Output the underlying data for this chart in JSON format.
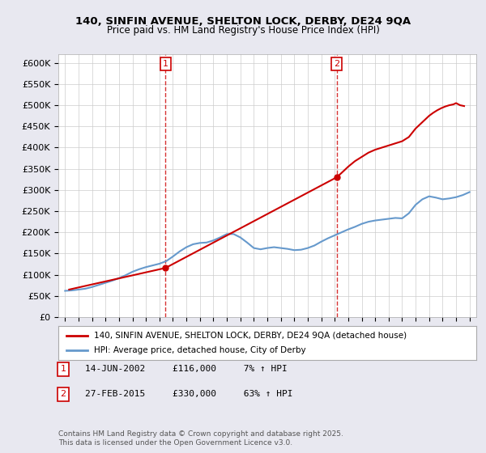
{
  "title_line1": "140, SINFIN AVENUE, SHELTON LOCK, DERBY, DE24 9QA",
  "title_line2": "Price paid vs. HM Land Registry's House Price Index (HPI)",
  "ylabel": "",
  "xlabel": "",
  "ylim": [
    0,
    620000
  ],
  "yticks": [
    0,
    50000,
    100000,
    150000,
    200000,
    250000,
    300000,
    350000,
    400000,
    450000,
    500000,
    550000,
    600000
  ],
  "ytick_labels": [
    "£0",
    "£50K",
    "£100K",
    "£150K",
    "£200K",
    "£250K",
    "£300K",
    "£350K",
    "£400K",
    "£450K",
    "£500K",
    "£550K",
    "£600K"
  ],
  "xlim_start": 1994.5,
  "xlim_end": 2025.5,
  "transaction1_date": 2002.45,
  "transaction1_price": 116000,
  "transaction1_label": "1",
  "transaction2_date": 2015.15,
  "transaction2_price": 330000,
  "transaction2_label": "2",
  "property_color": "#cc0000",
  "hpi_color": "#6699cc",
  "vline_color": "#cc0000",
  "background_color": "#e8e8f0",
  "plot_background": "#ffffff",
  "legend_label1": "140, SINFIN AVENUE, SHELTON LOCK, DERBY, DE24 9QA (detached house)",
  "legend_label2": "HPI: Average price, detached house, City of Derby",
  "annotation1": "14-JUN-2002     £116,000     7% ↑ HPI",
  "annotation2": "27-FEB-2015     £330,000     63% ↑ HPI",
  "footnote": "Contains HM Land Registry data © Crown copyright and database right 2025.\nThis data is licensed under the Open Government Licence v3.0.",
  "hpi_x": [
    1995,
    1995.5,
    1996,
    1996.5,
    1997,
    1997.5,
    1998,
    1998.5,
    1999,
    1999.5,
    2000,
    2000.5,
    2001,
    2001.5,
    2002,
    2002.5,
    2003,
    2003.5,
    2004,
    2004.5,
    2005,
    2005.5,
    2006,
    2006.5,
    2007,
    2007.5,
    2008,
    2008.5,
    2009,
    2009.5,
    2010,
    2010.5,
    2011,
    2011.5,
    2012,
    2012.5,
    2013,
    2013.5,
    2014,
    2014.5,
    2015,
    2015.5,
    2016,
    2016.5,
    2017,
    2017.5,
    2018,
    2018.5,
    2019,
    2019.5,
    2020,
    2020.5,
    2021,
    2021.5,
    2022,
    2022.5,
    2023,
    2023.5,
    2024,
    2024.5,
    2025
  ],
  "hpi_y": [
    62000,
    63000,
    65000,
    67000,
    71000,
    76000,
    81000,
    86000,
    92000,
    99000,
    107000,
    113000,
    118000,
    122000,
    126000,
    132000,
    143000,
    155000,
    165000,
    172000,
    175000,
    176000,
    181000,
    188000,
    196000,
    196000,
    188000,
    176000,
    163000,
    160000,
    163000,
    165000,
    163000,
    161000,
    158000,
    159000,
    163000,
    169000,
    178000,
    186000,
    193000,
    200000,
    207000,
    213000,
    220000,
    225000,
    228000,
    230000,
    232000,
    234000,
    233000,
    245000,
    265000,
    278000,
    285000,
    282000,
    278000,
    280000,
    283000,
    288000,
    295000
  ],
  "property_x": [
    1995.3,
    2002.45,
    2015.15,
    2015.5,
    2016.0,
    2016.5,
    2017.0,
    2017.5,
    2018.0,
    2018.5,
    2019.0,
    2019.5,
    2020.0,
    2020.5,
    2021.0,
    2021.5,
    2022.0,
    2022.3,
    2022.6,
    2022.9,
    2023.2,
    2023.5,
    2023.8,
    2024.0,
    2024.3,
    2024.6
  ],
  "property_y": [
    65000,
    116000,
    330000,
    340000,
    355000,
    368000,
    378000,
    388000,
    395000,
    400000,
    405000,
    410000,
    415000,
    425000,
    445000,
    460000,
    475000,
    482000,
    488000,
    493000,
    497000,
    500000,
    502000,
    505000,
    500000,
    498000
  ]
}
